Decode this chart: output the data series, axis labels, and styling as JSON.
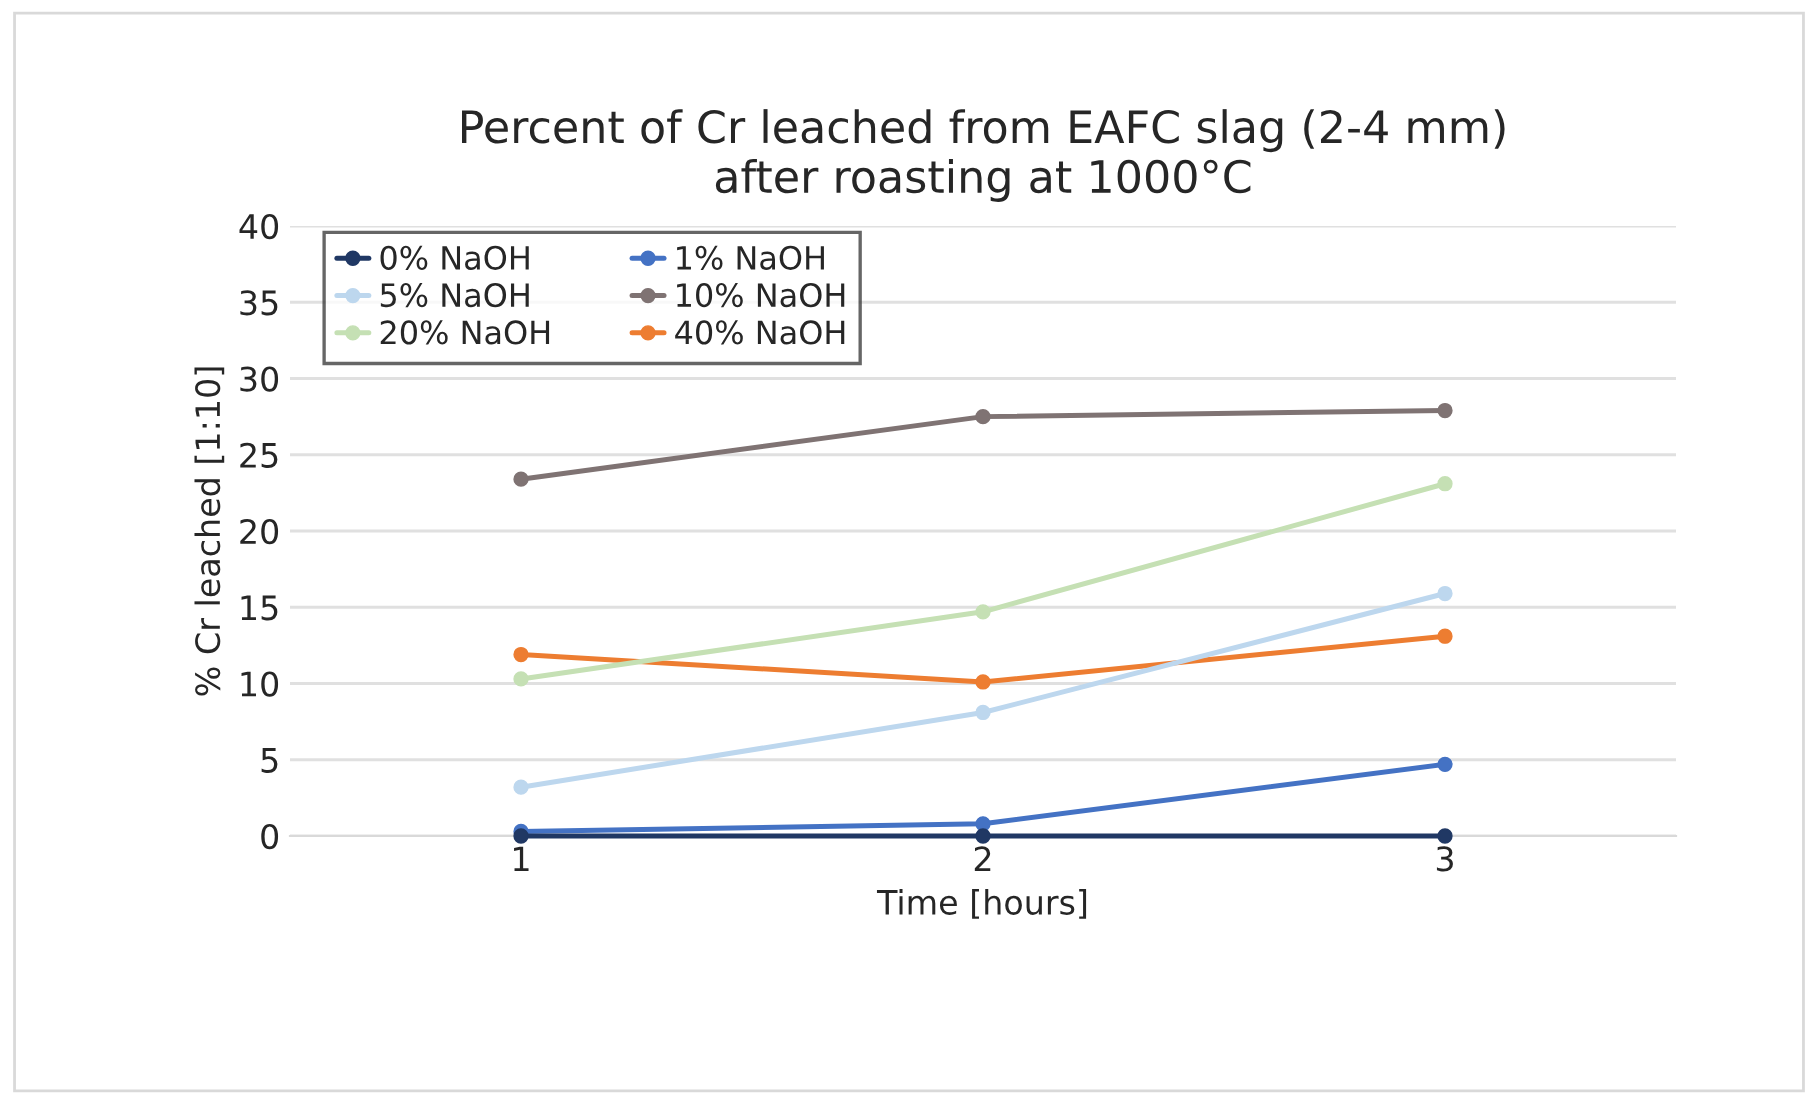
{
  "chart_data": {
    "type": "line",
    "title": "Percent of Cr leached from EAFC slag (2-4 mm)\nafter roasting at 1000°C",
    "xlabel": "Time [hours]",
    "ylabel": "% Cr leached [1:10]",
    "x": [
      1,
      2,
      3
    ],
    "xlim": [
      0.5,
      3.5
    ],
    "xticks": [
      1,
      2,
      3
    ],
    "series": [
      {
        "name": "0% NaOH",
        "color": "#203864",
        "values": [
          0,
          0,
          0
        ]
      },
      {
        "name": "1% NaOH",
        "color": "#4472c4",
        "values": [
          0.3,
          0.8,
          4.7
        ]
      },
      {
        "name": "5% NaOH",
        "color": "#bdd7ee",
        "values": [
          3.2,
          8.1,
          15.9
        ]
      },
      {
        "name": "10% NaOH",
        "color": "#7f7373",
        "values": [
          23.4,
          27.5,
          27.9
        ]
      },
      {
        "name": "20% NaOH",
        "color": "#c5e0b4",
        "values": [
          10.3,
          14.7,
          23.1
        ]
      },
      {
        "name": "40% NaOH",
        "color": "#ed7d31",
        "values": [
          11.9,
          10.1,
          13.1
        ]
      }
    ],
    "ylim": [
      0,
      40
    ],
    "yticks": [
      0,
      5,
      10,
      15,
      20,
      25,
      30,
      35,
      40
    ],
    "grid": "y",
    "legend": "top left",
    "marker": "circle",
    "line_style": "solid"
  }
}
